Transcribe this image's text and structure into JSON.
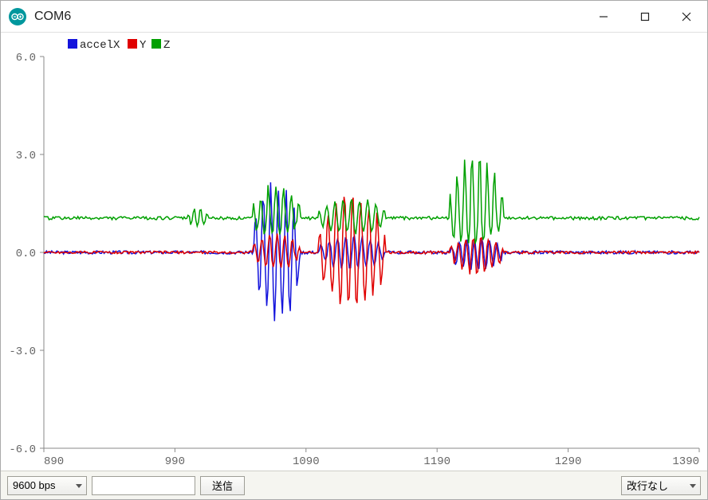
{
  "window": {
    "title": "COM6"
  },
  "legend": {
    "items": [
      {
        "label": "accelX",
        "color": "#1414dc"
      },
      {
        "label": "Y",
        "color": "#e00000"
      },
      {
        "label": "Z",
        "color": "#00a000"
      }
    ]
  },
  "chart": {
    "type": "line",
    "background_color": "#ffffff",
    "grid_color": "#d8d8d8",
    "axis_color": "#888888",
    "axis_label_color": "#666666",
    "axis_font_family": "Consolas, Courier New, monospace",
    "axis_font_size": 14,
    "line_width": 1.5,
    "xlim": [
      890,
      1390
    ],
    "ylim": [
      -6.0,
      6.0
    ],
    "xticks": [
      890,
      990,
      1090,
      1190,
      1290,
      1390
    ],
    "yticks": [
      -6.0,
      -3.0,
      0.0,
      3.0,
      6.0
    ],
    "xtick_labels": [
      "890",
      "990",
      "1090",
      "1190",
      "1290",
      "1390"
    ],
    "ytick_labels": [
      "-6.0",
      "-3.0",
      "0.0",
      "3.0",
      "6.0"
    ],
    "series": [
      {
        "name": "accelX",
        "color": "#1414dc",
        "baseline": 0.0,
        "noise": 0.05,
        "bursts": [
          {
            "start": 1050,
            "end": 1085,
            "amp_pos": 2.1,
            "amp_neg": -2.2,
            "freq": 6
          },
          {
            "start": 1100,
            "end": 1150,
            "amp_pos": 0.5,
            "amp_neg": -0.5,
            "freq": 8
          },
          {
            "start": 1200,
            "end": 1240,
            "amp_pos": 0.4,
            "amp_neg": -0.6,
            "freq": 7
          }
        ]
      },
      {
        "name": "Y",
        "color": "#e00000",
        "baseline": 0.0,
        "noise": 0.04,
        "bursts": [
          {
            "start": 1050,
            "end": 1085,
            "amp_pos": 0.6,
            "amp_neg": -0.5,
            "freq": 6
          },
          {
            "start": 1100,
            "end": 1150,
            "amp_pos": 1.8,
            "amp_neg": -1.8,
            "freq": 8
          },
          {
            "start": 1200,
            "end": 1240,
            "amp_pos": 0.5,
            "amp_neg": -0.7,
            "freq": 7
          }
        ]
      },
      {
        "name": "Z",
        "color": "#00a000",
        "baseline": 1.05,
        "noise": 0.05,
        "bursts": [
          {
            "start": 1000,
            "end": 1015,
            "amp_pos": 0.3,
            "amp_neg": -0.25,
            "freq": 3
          },
          {
            "start": 1050,
            "end": 1085,
            "amp_pos": 1.0,
            "amp_neg": -0.6,
            "freq": 6
          },
          {
            "start": 1100,
            "end": 1150,
            "amp_pos": 0.6,
            "amp_neg": -0.5,
            "freq": 8
          },
          {
            "start": 1200,
            "end": 1240,
            "amp_pos": 2.0,
            "amp_neg": -0.9,
            "freq": 7
          }
        ]
      }
    ]
  },
  "bottombar": {
    "baud_options": [
      "9600 bps"
    ],
    "baud_selected": "9600 bps",
    "send_label": "送信",
    "input_value": "",
    "line_ending_options": [
      "改行なし"
    ],
    "line_ending_selected": "改行なし"
  }
}
